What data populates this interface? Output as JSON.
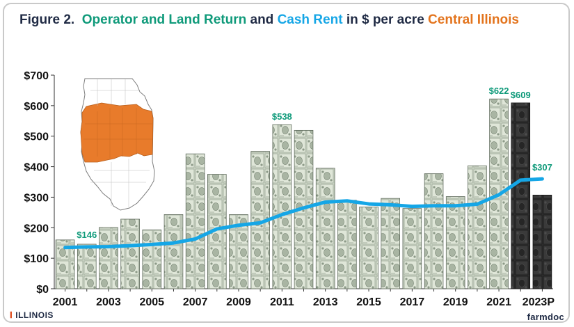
{
  "figure": {
    "label": "Figure 2.",
    "title_part1": "Operator and Land Return",
    "title_and": "and",
    "title_part2": "Cash Rent",
    "title_part3": "in $ per acre",
    "title_part4": "Central Illinois"
  },
  "colors": {
    "title_dark": "#1f2a44",
    "operator_land_return": "#0f9a7a",
    "cash_rent": "#15a6e6",
    "region": "#e3741d",
    "projected_bar": "#2b2b2b"
  },
  "map": {
    "icon": "illinois-map-icon",
    "highlighted_region": "Central Illinois"
  },
  "footer": {
    "left_logo": "ILLINOIS",
    "left_logo_icon": "block-i-icon",
    "right_logo": "farmdoc"
  },
  "chart_data": {
    "type": "bar",
    "categories": [
      "2001",
      "2002",
      "2003",
      "2004",
      "2005",
      "2006",
      "2007",
      "2008",
      "2009",
      "2010",
      "2011",
      "2012",
      "2013",
      "2014",
      "2015",
      "2016",
      "2017",
      "2018",
      "2019",
      "2020",
      "2021",
      "2022",
      "2023P"
    ],
    "x_tick_labels": [
      "2001",
      "2003",
      "2005",
      "2007",
      "2009",
      "2011",
      "2013",
      "2015",
      "2017",
      "2019",
      "2021",
      "2023P"
    ],
    "ylim": [
      0,
      700
    ],
    "y_ticks": [
      0,
      100,
      200,
      300,
      400,
      500,
      600,
      700
    ],
    "y_tick_labels": [
      "$0",
      "$100",
      "$200",
      "$300",
      "$400",
      "$500",
      "$600",
      "$700"
    ],
    "series": [
      {
        "name": "Operator and Land Return",
        "type": "bar",
        "values": [
          160,
          146,
          201,
          228,
          193,
          243,
          442,
          375,
          243,
          450,
          538,
          519,
          395,
          290,
          268,
          296,
          263,
          377,
          302,
          403,
          622,
          609,
          307
        ],
        "projected": [
          false,
          false,
          false,
          false,
          false,
          false,
          false,
          false,
          false,
          false,
          false,
          false,
          false,
          false,
          false,
          false,
          false,
          false,
          false,
          false,
          false,
          true,
          true
        ]
      },
      {
        "name": "Cash Rent",
        "type": "line",
        "values": [
          135,
          137,
          138,
          141,
          145,
          150,
          163,
          196,
          208,
          216,
          243,
          265,
          284,
          288,
          278,
          275,
          270,
          272,
          272,
          277,
          308,
          356,
          360
        ]
      }
    ],
    "data_labels": [
      {
        "category": "2002",
        "text": "$146"
      },
      {
        "category": "2011",
        "text": "$538"
      },
      {
        "category": "2021",
        "text": "$622"
      },
      {
        "category": "2022",
        "text": "$609"
      },
      {
        "category": "2023P",
        "text": "$307"
      }
    ],
    "grid": false
  }
}
